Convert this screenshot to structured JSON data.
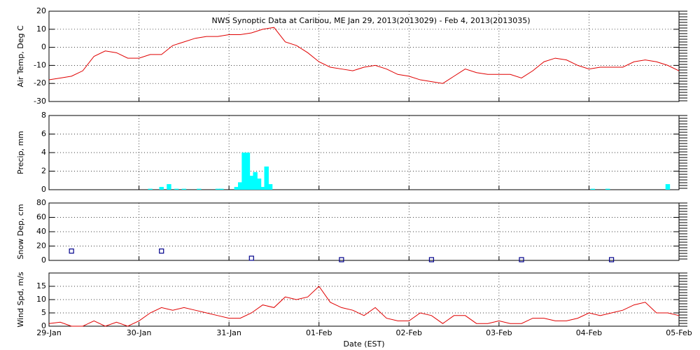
{
  "chart_data": [
    {
      "type": "line",
      "title": "NWS Synoptic Data at Caribou, ME   Jan 29, 2013(2013029) - Feb  4, 2013(2013035)",
      "y_label": "Air Temp, Deg C",
      "color": "#e00000",
      "x": [
        0,
        3,
        6,
        9,
        12,
        15,
        18,
        21,
        24,
        27,
        30,
        33,
        36,
        39,
        42,
        45,
        48,
        51,
        54,
        57,
        60,
        63,
        66,
        69,
        72,
        75,
        78,
        81,
        84,
        87,
        90,
        93,
        96,
        99,
        102,
        105,
        108,
        111,
        114,
        117,
        120,
        123,
        126,
        129,
        132,
        135,
        138,
        141,
        144,
        147,
        150,
        153,
        156,
        159,
        162,
        165,
        168
      ],
      "values": [
        -18,
        -17,
        -16,
        -13,
        -5,
        -2,
        -3,
        -6,
        -6,
        -4,
        -4,
        1,
        3,
        5,
        6,
        6,
        7,
        7,
        8,
        10,
        11,
        3,
        1,
        -3,
        -8,
        -11,
        -12,
        -13,
        -11,
        -10,
        -12,
        -15,
        -16,
        -18,
        -19,
        -20,
        -16,
        -12,
        -14,
        -15,
        -15,
        -15,
        -17,
        -13,
        -8,
        -6,
        -7,
        -10,
        -12,
        -11,
        -11,
        -11,
        -8,
        -7,
        -8,
        -10,
        -13
      ],
      "xlim": [
        0,
        168
      ],
      "ylim": [
        -30,
        20
      ],
      "yticks": [
        -30,
        -20,
        -10,
        0,
        10,
        20
      ],
      "grid": true
    },
    {
      "type": "bar",
      "y_label": "Precip, mm",
      "color": "#00ffff",
      "x": [
        27,
        30,
        32,
        34,
        36,
        40,
        45,
        46,
        50,
        51,
        52,
        53,
        54,
        55,
        56,
        57,
        58,
        59,
        145,
        149,
        165
      ],
      "values": [
        0.1,
        0.3,
        0.6,
        0.1,
        0.1,
        0.1,
        0.1,
        0.1,
        0.3,
        0.8,
        4,
        4,
        1.5,
        1.9,
        1.2,
        0.3,
        2.5,
        0.6,
        0.1,
        0.1,
        0.6
      ],
      "xlim": [
        0,
        168
      ],
      "ylim": [
        0,
        8
      ],
      "yticks": [
        0,
        2,
        4,
        6,
        8
      ],
      "grid": true
    },
    {
      "type": "scatter",
      "y_label": "Snow Dep, cm",
      "color": "#00008b",
      "x": [
        6,
        30,
        54,
        78,
        102,
        126,
        150
      ],
      "values": [
        13,
        13,
        3,
        1,
        1,
        1,
        1
      ],
      "xlim": [
        0,
        168
      ],
      "ylim": [
        0,
        80
      ],
      "yticks": [
        0,
        20,
        40,
        60,
        80
      ],
      "grid": true
    },
    {
      "type": "line",
      "y_label": "Wind Spd, m/s",
      "x_label": "Date (EST)",
      "color": "#e00000",
      "x": [
        0,
        3,
        6,
        9,
        12,
        15,
        18,
        21,
        24,
        27,
        30,
        33,
        36,
        39,
        42,
        45,
        48,
        51,
        54,
        57,
        60,
        63,
        66,
        69,
        72,
        75,
        78,
        81,
        84,
        87,
        90,
        93,
        96,
        99,
        102,
        105,
        108,
        111,
        114,
        117,
        120,
        123,
        126,
        129,
        132,
        135,
        138,
        141,
        144,
        147,
        150,
        153,
        156,
        159,
        162,
        165,
        168
      ],
      "values": [
        1,
        1.5,
        0,
        0,
        2,
        0,
        1.5,
        0,
        2,
        5,
        7,
        6,
        7,
        6,
        5,
        4,
        3,
        3,
        5,
        8,
        7,
        11,
        10,
        11,
        15,
        9,
        7,
        6,
        4,
        7,
        3,
        2,
        2,
        5,
        4,
        1,
        4,
        4,
        1,
        1,
        2,
        1,
        1,
        3,
        3,
        2,
        2,
        3,
        5,
        4,
        5,
        6,
        8,
        9,
        5,
        5,
        4
      ],
      "xlim": [
        0,
        168
      ],
      "ylim": [
        0,
        20
      ],
      "yticks": [
        0,
        5,
        10,
        15
      ],
      "grid": true,
      "xticks": [
        {
          "value": 0,
          "label": "29-Jan"
        },
        {
          "value": 24,
          "label": "30-Jan"
        },
        {
          "value": 48,
          "label": "31-Jan"
        },
        {
          "value": 72,
          "label": "01-Feb"
        },
        {
          "value": 96,
          "label": "02-Feb"
        },
        {
          "value": 120,
          "label": "03-Feb"
        },
        {
          "value": 144,
          "label": "04-Feb"
        },
        {
          "value": 168,
          "label": "05-Feb"
        }
      ]
    }
  ]
}
